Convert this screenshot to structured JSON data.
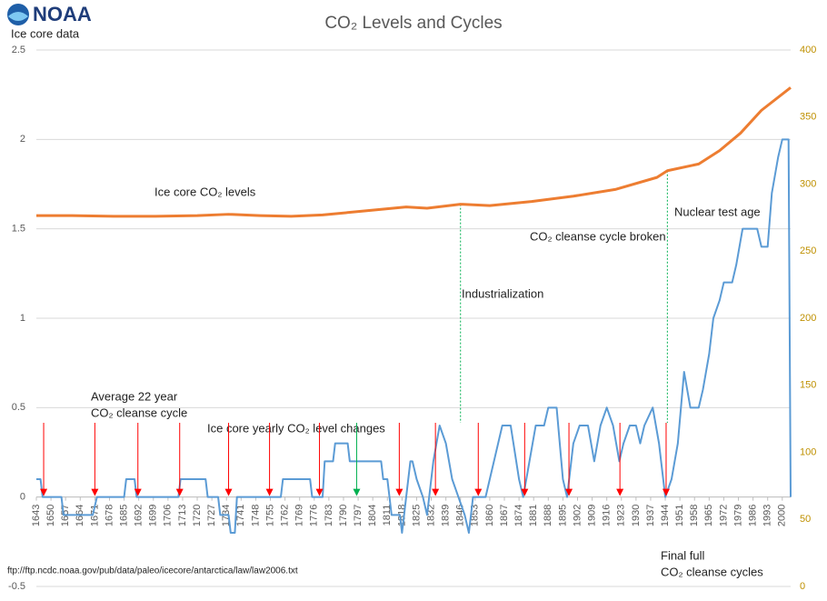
{
  "chart_data": {
    "type": "line",
    "title": "CO₂ Levels and Cycles",
    "logo": "NOAA",
    "y_label": "Ice core data",
    "source": "ftp://ftp.ncdc.noaa.gov/pub/data/paleo/icecore/antarctica/law/law2006.txt",
    "annotations": [
      "Ice core CO₂ levels",
      "Average 22 year",
      "CO₂ cleanse cycle",
      "Ice core yearly CO₂ level changes",
      "Industrialization",
      "CO₂ cleanse cycle broken",
      "Nuclear test age",
      "Final full",
      "CO₂ cleanse cycles"
    ],
    "xlim": [
      1643,
      2004
    ],
    "xticks": [
      1643,
      1650,
      1657,
      1664,
      1671,
      1678,
      1685,
      1692,
      1699,
      1706,
      1713,
      1720,
      1727,
      1734,
      1741,
      1748,
      1755,
      1762,
      1769,
      1776,
      1783,
      1790,
      1797,
      1804,
      1811,
      1818,
      1825,
      1832,
      1839,
      1846,
      1853,
      1860,
      1867,
      1874,
      1881,
      1888,
      1895,
      1902,
      1909,
      1916,
      1923,
      1930,
      1937,
      1944,
      1951,
      1958,
      1965,
      1972,
      1979,
      1986,
      1993,
      2000
    ],
    "ylim": [
      -0.5,
      2.5
    ],
    "yticks": [
      -0.5,
      0,
      0.5,
      1,
      1.5,
      2,
      2.5
    ],
    "y2lim": [
      0,
      400
    ],
    "y2ticks": [
      0,
      50,
      100,
      150,
      200,
      250,
      300,
      350,
      400
    ],
    "grid": true,
    "arrows": [
      {
        "x": 1646.5,
        "color": "#ff0000"
      },
      {
        "x": 1671,
        "color": "#ff0000"
      },
      {
        "x": 1691.6,
        "color": "#ff0000"
      },
      {
        "x": 1711.6,
        "color": "#ff0000"
      },
      {
        "x": 1735,
        "color": "#ff0000"
      },
      {
        "x": 1754.6,
        "color": "#ff0000"
      },
      {
        "x": 1778.5,
        "color": "#ff0000"
      },
      {
        "x": 1796.3,
        "color": "#00b050"
      },
      {
        "x": 1816.7,
        "color": "#ff0000"
      },
      {
        "x": 1834,
        "color": "#ff0000"
      },
      {
        "x": 1854.5,
        "color": "#ff0000"
      },
      {
        "x": 1876.7,
        "color": "#ff0000"
      },
      {
        "x": 1897.9,
        "color": "#ff0000"
      },
      {
        "x": 1922.3,
        "color": "#ff0000"
      },
      {
        "x": 1944.4,
        "color": "#ff0000"
      }
    ],
    "guides": [
      {
        "x": 1846,
        "color": "#00b050"
      },
      {
        "x": 1945,
        "color": "#00b050"
      }
    ],
    "series": [
      {
        "color": "#5b9bd5",
        "axis": "y",
        "x": [
          1643,
          1645,
          1646,
          1655,
          1656,
          1670,
          1672,
          1685,
          1686,
          1690,
          1691,
          1711,
          1712,
          1724,
          1725,
          1730,
          1731,
          1735,
          1736,
          1738,
          1739,
          1744,
          1760,
          1761,
          1774,
          1775,
          1780,
          1781,
          1785,
          1786,
          1792,
          1793,
          1808,
          1809,
          1811,
          1812,
          1813,
          1817,
          1818,
          1820,
          1822,
          1823,
          1825,
          1828,
          1830,
          1833,
          1836,
          1839,
          1842,
          1845,
          1848,
          1850,
          1852,
          1858,
          1860,
          1864,
          1866,
          1870,
          1874,
          1876,
          1879,
          1882,
          1886,
          1888,
          1892,
          1895,
          1897,
          1900,
          1903,
          1907,
          1910,
          1913,
          1916,
          1919,
          1922,
          1924,
          1927,
          1930,
          1932,
          1934,
          1938,
          1941,
          1944,
          1947,
          1950,
          1953,
          1956,
          1960,
          1962,
          1965,
          1967,
          1970,
          1972,
          1976,
          1978,
          1981,
          1988,
          1990,
          1993,
          1995,
          1998,
          2000,
          2003,
          2004
        ],
        "values": [
          0.1,
          0.1,
          0,
          0,
          -0.1,
          -0.1,
          0,
          0,
          0.1,
          0.1,
          0,
          0,
          0.1,
          0.1,
          0,
          0,
          -0.1,
          -0.1,
          -0.2,
          -0.2,
          0,
          0,
          0,
          0.1,
          0.1,
          0,
          0,
          0.2,
          0.2,
          0.3,
          0.3,
          0.2,
          0.2,
          0.1,
          0.1,
          0,
          -0.1,
          -0.1,
          -0.2,
          0,
          0.2,
          0.2,
          0.1,
          0,
          -0.1,
          0.2,
          0.4,
          0.3,
          0.1,
          0,
          -0.1,
          -0.2,
          0,
          0,
          0.1,
          0.3,
          0.4,
          0.4,
          0.1,
          0,
          0.2,
          0.4,
          0.4,
          0.5,
          0.5,
          0.1,
          0,
          0.3,
          0.4,
          0.4,
          0.2,
          0.4,
          0.5,
          0.4,
          0.2,
          0.3,
          0.4,
          0.4,
          0.3,
          0.4,
          0.5,
          0.3,
          0,
          0.1,
          0.3,
          0.7,
          0.5,
          0.5,
          0.6,
          0.8,
          1.0,
          1.1,
          1.2,
          1.2,
          1.3,
          1.5,
          1.5,
          1.4,
          1.4,
          1.7,
          1.9,
          2.0,
          2.0,
          0
        ]
      },
      {
        "color": "#ed7d31",
        "axis": "y2",
        "x": [
          1643,
          1660,
          1680,
          1700,
          1720,
          1735,
          1750,
          1765,
          1780,
          1800,
          1820,
          1830,
          1846,
          1860,
          1880,
          1900,
          1920,
          1940,
          1945,
          1960,
          1970,
          1980,
          1990,
          2004
        ],
        "values": [
          276.5,
          276.5,
          276,
          276,
          276.5,
          277.5,
          276.5,
          276,
          277,
          280,
          283,
          282,
          285,
          284,
          287,
          291,
          296,
          305,
          310,
          315,
          325,
          338,
          355,
          372
        ]
      }
    ]
  }
}
